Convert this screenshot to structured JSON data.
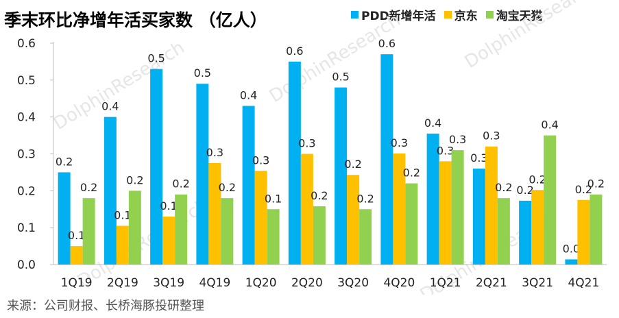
{
  "title": "季末环比净增年活买家数 （亿人）",
  "source": "来源：公司财报、长桥海豚投研整理",
  "watermark": "DolphinResearch",
  "chart_data": {
    "type": "bar",
    "categories": [
      "1Q19",
      "2Q19",
      "3Q19",
      "4Q19",
      "1Q20",
      "2Q20",
      "3Q20",
      "4Q20",
      "1Q21",
      "2Q21",
      "3Q21",
      "4Q21"
    ],
    "ylim": [
      0,
      0.6
    ],
    "yticks": [
      "0.0",
      "0.1",
      "0.2",
      "0.3",
      "0.4",
      "0.5",
      "0.6"
    ],
    "grid": false,
    "legend_position": "top-right",
    "series": [
      {
        "name": "PDD新增年活",
        "color": "#00B0F0",
        "values": [
          0.25,
          0.4,
          0.53,
          0.49,
          0.43,
          0.55,
          0.48,
          0.57,
          0.355,
          0.26,
          0.173,
          0.014
        ],
        "labels": [
          "0.2",
          "0.4",
          "0.5",
          "0.5",
          "0.4",
          "0.6",
          "0.5",
          "0.6",
          "0.4",
          "0.3",
          "0.2",
          "0.0"
        ]
      },
      {
        "name": "京东",
        "color": "#FFC000",
        "values": [
          0.05,
          0.105,
          0.13,
          0.275,
          0.254,
          0.3,
          0.243,
          0.301,
          0.28,
          0.32,
          0.202,
          0.175
        ],
        "labels": [
          "0.1",
          "0.1",
          "0.1",
          "0.3",
          "0.3",
          "0.3",
          "0.2",
          "0.3",
          "0.3",
          "0.3",
          "0.2",
          "0.2"
        ]
      },
      {
        "name": "淘宝天猫",
        "color": "#92D050",
        "values": [
          0.18,
          0.2,
          0.19,
          0.18,
          0.15,
          0.158,
          0.15,
          0.22,
          0.31,
          0.18,
          0.35,
          0.19
        ],
        "labels": [
          "0.2",
          "0.2",
          "0.2",
          "0.2",
          "0.1",
          "0.2",
          "0.2",
          "0.2",
          "0.3",
          "0.2",
          "0.4",
          "0.2"
        ]
      }
    ]
  }
}
